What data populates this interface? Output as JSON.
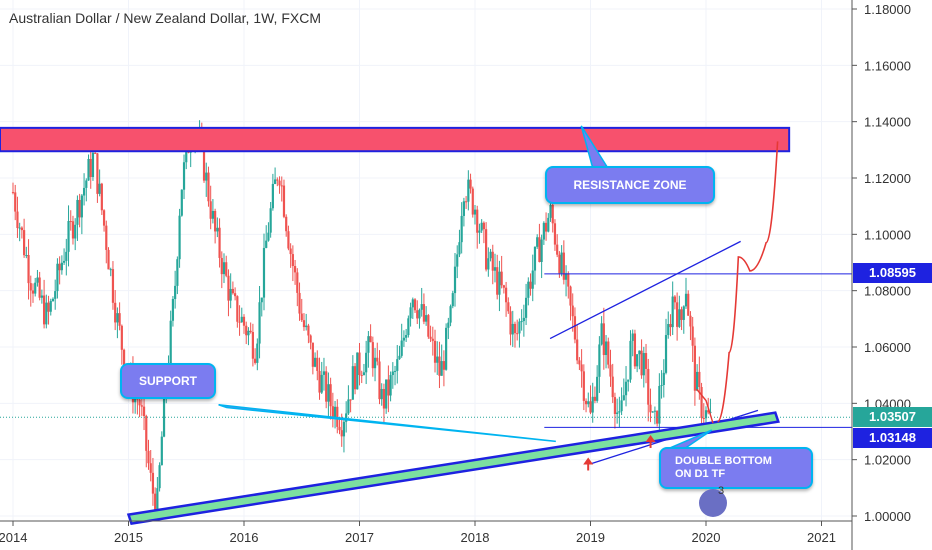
{
  "title": "Australian Dollar / New Zealand Dollar, 1W, FXCM",
  "annotations": {
    "resistance": "RESISTANCE ZONE",
    "support": "SUPPORT",
    "double_bottom_line1": "DOUBLE BOTTOM",
    "double_bottom_line2": "ON D1 TF",
    "badge_count": "3"
  },
  "price_tags": {
    "level_high": "1.08595",
    "level_current": "1.03507",
    "level_low": "1.03148"
  },
  "colors": {
    "bull": "#26a69a",
    "bear": "#ef5350",
    "zone_red": "#f7516d",
    "zone_green": "#7ce0a0",
    "line_blue": "#1e22e0",
    "callout": "#7b7cf0",
    "tag_current": "#26a69a",
    "tag_level": "#1e22e0"
  },
  "chart_data": {
    "type": "candlestick",
    "title": "Australian Dollar / New Zealand Dollar, 1W, FXCM",
    "x_ticks": [
      "2014",
      "2015",
      "2016",
      "2017",
      "2018",
      "2019",
      "2020",
      "2021"
    ],
    "y_ticks": [
      "1.18000",
      "1.16000",
      "1.14000",
      "1.12000",
      "1.10000",
      "1.08000",
      "1.06000",
      "1.04000",
      "1.02000",
      "1.00000"
    ],
    "ylim": [
      0.998,
      1.182
    ],
    "xlim": [
      2014.0,
      2021.2
    ],
    "anchors": [
      [
        2014.0,
        1.115
      ],
      [
        2014.15,
        1.085
      ],
      [
        2014.3,
        1.07
      ],
      [
        2014.45,
        1.095
      ],
      [
        2014.6,
        1.115
      ],
      [
        2014.7,
        1.128
      ],
      [
        2014.8,
        1.1
      ],
      [
        2014.9,
        1.07
      ],
      [
        2015.0,
        1.048
      ],
      [
        2015.1,
        1.04
      ],
      [
        2015.2,
        1.01
      ],
      [
        2015.25,
        1.004
      ],
      [
        2015.3,
        1.035
      ],
      [
        2015.4,
        1.08
      ],
      [
        2015.45,
        1.115
      ],
      [
        2015.55,
        1.14
      ],
      [
        2015.65,
        1.125
      ],
      [
        2015.75,
        1.1
      ],
      [
        2015.9,
        1.075
      ],
      [
        2016.0,
        1.068
      ],
      [
        2016.1,
        1.06
      ],
      [
        2016.2,
        1.1
      ],
      [
        2016.3,
        1.125
      ],
      [
        2016.4,
        1.095
      ],
      [
        2016.5,
        1.07
      ],
      [
        2016.6,
        1.055
      ],
      [
        2016.75,
        1.04
      ],
      [
        2016.85,
        1.034
      ],
      [
        2016.95,
        1.05
      ],
      [
        2017.1,
        1.06
      ],
      [
        2017.2,
        1.04
      ],
      [
        2017.35,
        1.055
      ],
      [
        2017.45,
        1.08
      ],
      [
        2017.55,
        1.07
      ],
      [
        2017.7,
        1.05
      ],
      [
        2017.8,
        1.072
      ],
      [
        2017.9,
        1.118
      ],
      [
        2018.0,
        1.11
      ],
      [
        2018.1,
        1.092
      ],
      [
        2018.25,
        1.078
      ],
      [
        2018.35,
        1.062
      ],
      [
        2018.45,
        1.08
      ],
      [
        2018.55,
        1.095
      ],
      [
        2018.65,
        1.108
      ],
      [
        2018.75,
        1.088
      ],
      [
        2018.85,
        1.068
      ],
      [
        2018.95,
        1.045
      ],
      [
        2019.0,
        1.035
      ],
      [
        2019.1,
        1.065
      ],
      [
        2019.2,
        1.045
      ],
      [
        2019.25,
        1.032
      ],
      [
        2019.35,
        1.06
      ],
      [
        2019.45,
        1.055
      ],
      [
        2019.55,
        1.03
      ],
      [
        2019.65,
        1.058
      ],
      [
        2019.72,
        1.08
      ],
      [
        2019.78,
        1.066
      ],
      [
        2019.82,
        1.085
      ],
      [
        2019.9,
        1.05
      ],
      [
        2019.95,
        1.04
      ],
      [
        2020.0,
        1.036
      ],
      [
        2020.05,
        1.033
      ]
    ],
    "levels": [
      {
        "label": "1.08595",
        "y": 1.08595
      },
      {
        "label": "1.03148",
        "y": 1.03148
      }
    ],
    "current_price": 1.03507,
    "resistance_zone": [
      1.1295,
      1.1378
    ],
    "support_line": {
      "from": [
        2015.0,
        1.0005
      ],
      "to": [
        2020.6,
        1.0335
      ]
    },
    "channel_top": {
      "from": [
        2018.65,
        1.063
      ],
      "to": [
        2020.3,
        1.0975
      ]
    },
    "channel_bottom": {
      "from": [
        2019.0,
        1.0185
      ],
      "to": [
        2020.45,
        1.0375
      ]
    },
    "projection_red": [
      [
        2020.1,
        1.0335
      ],
      [
        2020.2,
        1.058
      ],
      [
        2020.28,
        1.092
      ],
      [
        2020.38,
        1.087
      ],
      [
        2020.52,
        1.097
      ],
      [
        2020.62,
        1.133
      ]
    ]
  }
}
